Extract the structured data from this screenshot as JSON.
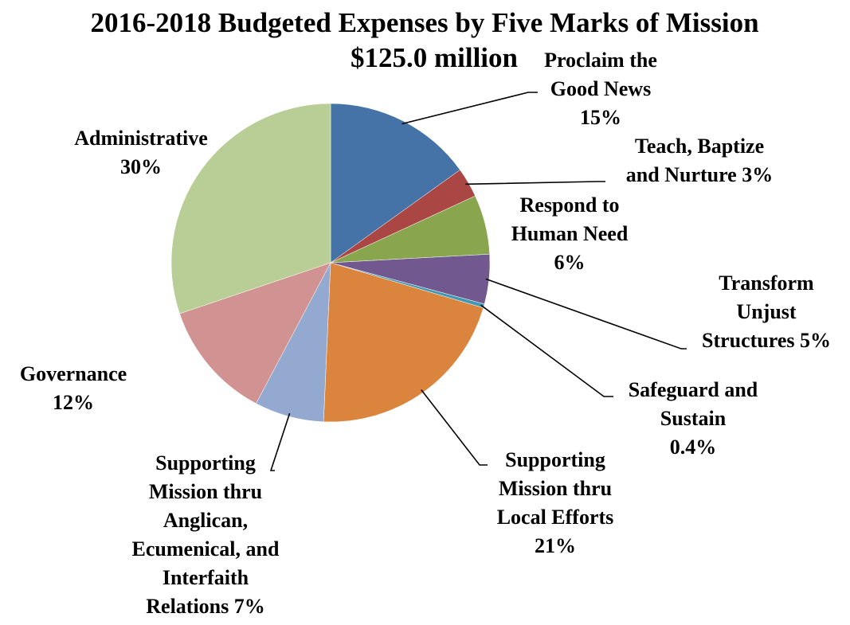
{
  "chart_data": {
    "type": "pie",
    "title": "2016-2018 Budgeted Expenses by Five Marks of Mission",
    "subtitle": "$125.0 million",
    "legend": "none",
    "slices": [
      {
        "label_lines": [
          "Proclaim the",
          "Good News",
          "15%"
        ],
        "value": 15,
        "color": "#4572a7"
      },
      {
        "label_lines": [
          "Teach, Baptize",
          "and Nurture 3%"
        ],
        "value": 3,
        "color": "#aa4643"
      },
      {
        "label_lines": [
          "Respond to",
          "Human Need",
          "6%"
        ],
        "value": 6,
        "color": "#89a54e"
      },
      {
        "label_lines": [
          "Transform",
          "Unjust",
          "Structures 5%"
        ],
        "value": 5,
        "color": "#71588f"
      },
      {
        "label_lines": [
          "Safeguard and",
          "Sustain",
          "0.4%"
        ],
        "value": 0.4,
        "color": "#4198af"
      },
      {
        "label_lines": [
          "Supporting",
          "Mission thru",
          "Local Efforts",
          "21%"
        ],
        "value": 21,
        "color": "#db843d"
      },
      {
        "label_lines": [
          "Supporting",
          "Mission thru",
          "Anglican,",
          "Ecumenical, and",
          "Interfaith",
          "Relations 7%"
        ],
        "value": 7,
        "color": "#93a9cf"
      },
      {
        "label_lines": [
          "Governance",
          "12%"
        ],
        "value": 12,
        "color": "#d19392"
      },
      {
        "label_lines": [
          "Administrative",
          "30%"
        ],
        "value": 30,
        "color": "#b9cd96"
      }
    ]
  }
}
